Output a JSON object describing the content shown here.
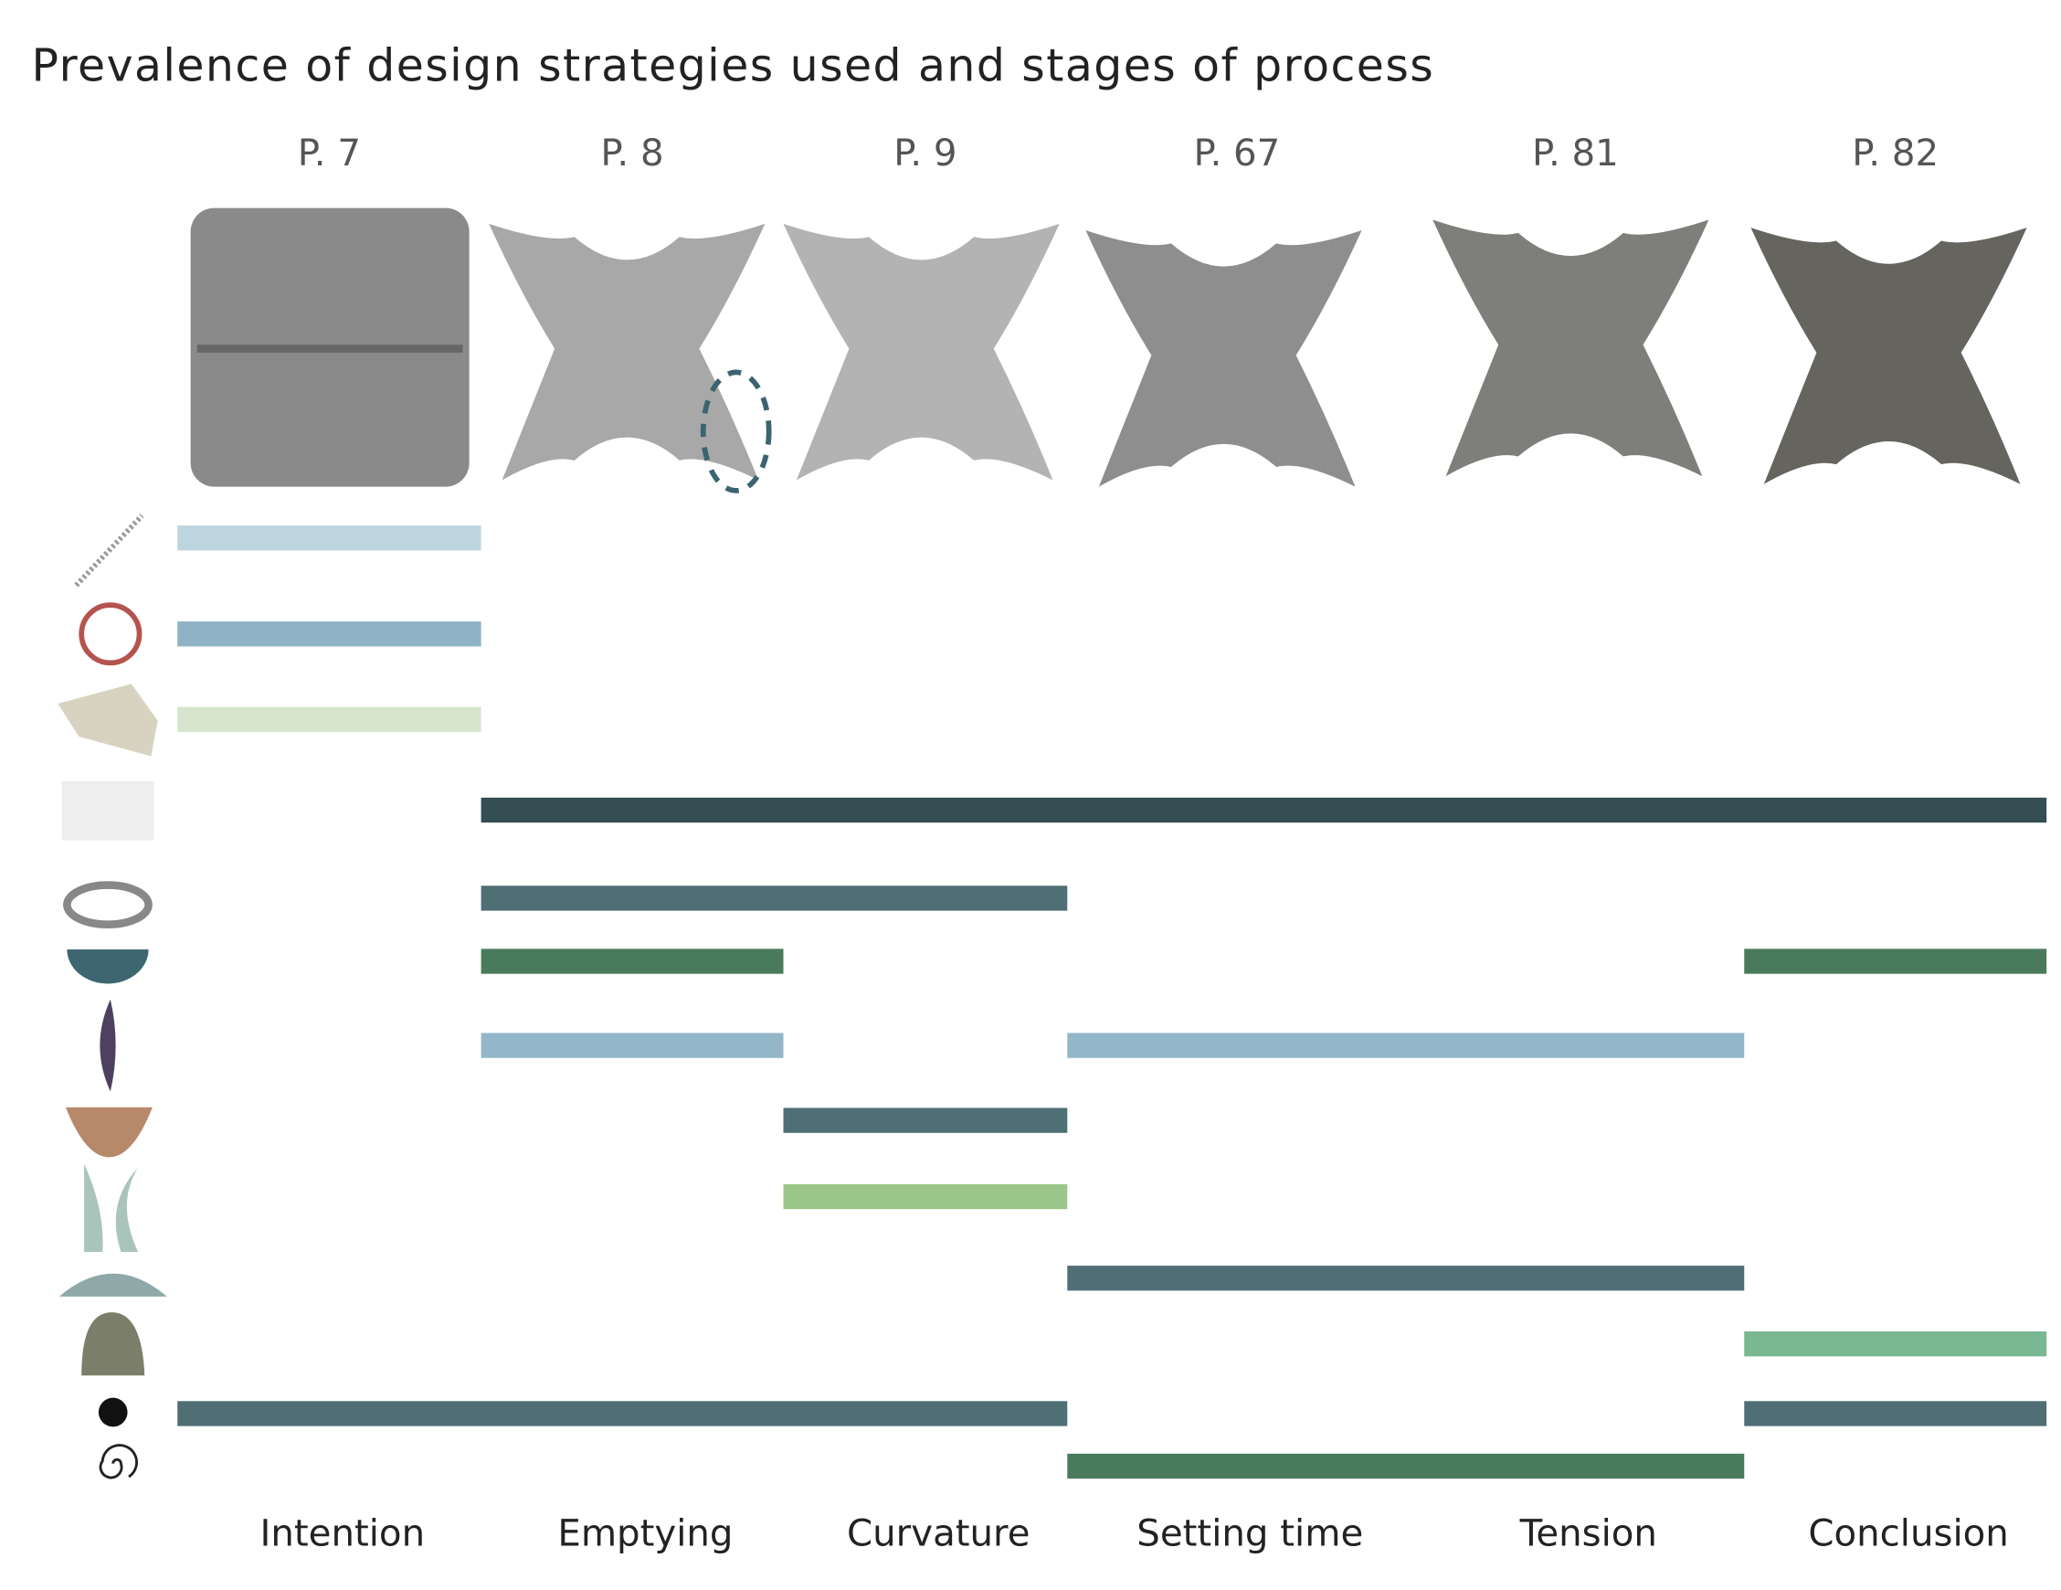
{
  "title": "Prevalence of design strategies used and stages of process",
  "pages": [
    "P. 7",
    "P. 8",
    "P. 9",
    "P. 67",
    "P. 81",
    "P. 82"
  ],
  "stages": [
    "Intention",
    "Emptying",
    "Curvature",
    "Setting time",
    "Tension",
    "Conclusion"
  ],
  "strategies": [
    {
      "bars": [
        {
          "start": 0,
          "end": 1,
          "color": "#bdd5de"
        }
      ]
    },
    {
      "bars": [
        {
          "start": 0,
          "end": 1,
          "color": "#8fb3c5"
        }
      ]
    },
    {
      "bars": [
        {
          "start": 0,
          "end": 1,
          "color": "#d5e6cc"
        }
      ]
    },
    {
      "bars": [
        {
          "start": 1,
          "end": 6,
          "color": "#354e53"
        }
      ]
    },
    {
      "bars": [
        {
          "start": 1,
          "end": 3,
          "color": "#4f6f75"
        }
      ]
    },
    {
      "bars": [
        {
          "start": 1,
          "end": 2,
          "color": "#4a7a5c"
        },
        {
          "start": 5,
          "end": 6,
          "color": "#4a7a5c"
        }
      ]
    },
    {
      "bars": [
        {
          "start": 1,
          "end": 2,
          "color": "#93b7c8"
        },
        {
          "start": 3,
          "end": 5,
          "color": "#93b7c8"
        }
      ]
    },
    {
      "bars": [
        {
          "start": 2,
          "end": 3,
          "color": "#4f6f75"
        }
      ]
    },
    {
      "bars": [
        {
          "start": 2,
          "end": 3,
          "color": "#9cc78a"
        }
      ]
    },
    {
      "bars": [
        {
          "start": 3,
          "end": 5,
          "color": "#4f6f75"
        }
      ]
    },
    {
      "bars": [
        {
          "start": 5,
          "end": 6,
          "color": "#79b892"
        }
      ]
    },
    {
      "bars": [
        {
          "start": 0,
          "end": 3,
          "color": "#4f6f75"
        },
        {
          "start": 5,
          "end": 6,
          "color": "#4f6f75"
        }
      ]
    },
    {
      "bars": [
        {
          "start": 3,
          "end": 5,
          "color": "#4a7a5c"
        }
      ]
    }
  ]
}
